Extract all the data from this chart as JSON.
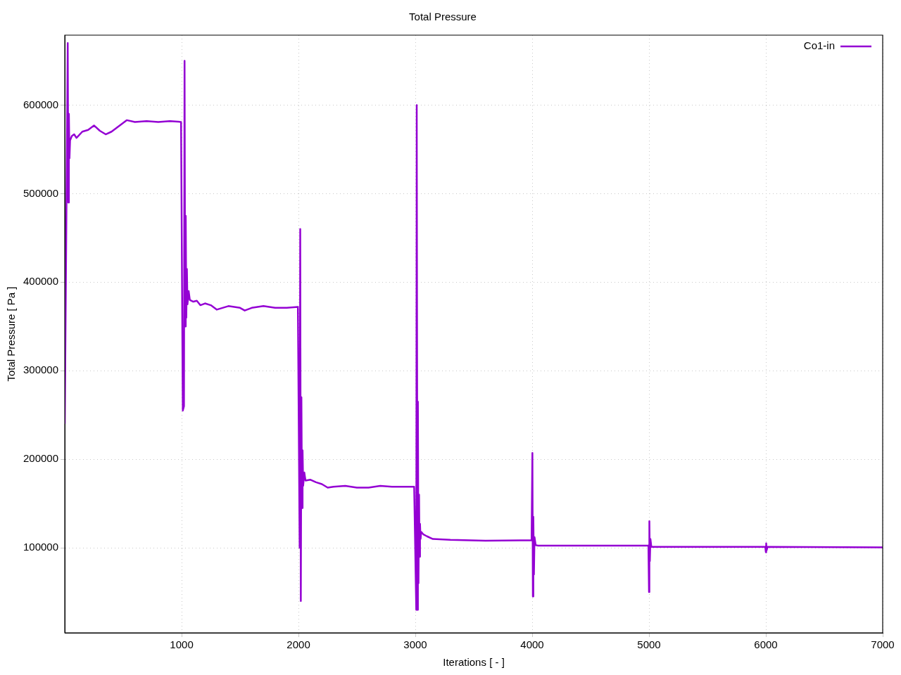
{
  "chart_data": {
    "type": "line",
    "title": "Total Pressure",
    "xlabel": "Iterations [ - ]",
    "ylabel": "Total Pressure [ Pa ]",
    "xlim": [
      0,
      7000
    ],
    "xticks": [
      1000,
      2000,
      3000,
      4000,
      5000,
      6000,
      7000
    ],
    "ylim": [
      4000,
      679000
    ],
    "yticks": [
      100000,
      200000,
      300000,
      400000,
      500000,
      600000
    ],
    "grid": true,
    "legend": "top right",
    "marker": "none",
    "line_style": "solid",
    "series": [
      {
        "name": "Co1-in",
        "color": "#9400d3",
        "x": [
          0,
          5,
          10,
          15,
          20,
          25,
          30,
          35,
          40,
          45,
          60,
          80,
          100,
          150,
          200,
          250,
          300,
          350,
          400,
          500,
          530,
          600,
          700,
          800,
          900,
          995,
          1000,
          1005,
          1010,
          1015,
          1020,
          1025,
          1030,
          1035,
          1040,
          1045,
          1050,
          1060,
          1070,
          1100,
          1130,
          1160,
          1200,
          1250,
          1300,
          1350,
          1400,
          1450,
          1500,
          1540,
          1600,
          1700,
          1800,
          1900,
          1995,
          2000,
          2005,
          2010,
          2015,
          2020,
          2025,
          2030,
          2035,
          2040,
          2050,
          2060,
          2100,
          2150,
          2200,
          2250,
          2300,
          2400,
          2500,
          2600,
          2700,
          2800,
          2900,
          2990,
          2995,
          3000,
          3003,
          3008,
          3012,
          3018,
          3022,
          3027,
          3032,
          3036,
          3040,
          3045,
          3050,
          3070,
          3100,
          3150,
          3300,
          3600,
          3900,
          3995,
          4000,
          4002,
          4006,
          4010,
          4015,
          4020,
          4030,
          4050,
          4500,
          4995,
          5000,
          5003,
          5007,
          5012,
          5020,
          5500,
          5995,
          6000,
          6003,
          6006,
          6015,
          7000
        ],
        "values": [
          240000,
          null,
          null,
          null,
          null,
          670000,
          490000,
          590000,
          540000,
          560000,
          565000,
          567000,
          563000,
          570000,
          572000,
          577000,
          571000,
          567000,
          570000,
          580000,
          583000,
          581000,
          582000,
          581000,
          582000,
          581000,
          null,
          null,
          255000,
          null,
          260000,
          650000,
          350000,
          475000,
          360000,
          415000,
          375000,
          390000,
          380000,
          378000,
          379000,
          374000,
          376000,
          374000,
          369000,
          371000,
          373000,
          372000,
          371000,
          368000,
          371000,
          373000,
          371000,
          371000,
          372000,
          null,
          null,
          100000,
          460000,
          40000,
          270000,
          145000,
          210000,
          170000,
          185000,
          176000,
          177000,
          174000,
          172000,
          168000,
          169000,
          170000,
          168000,
          168000,
          170000,
          169000,
          169000,
          169000,
          null,
          null,
          null,
          30000,
          600000,
          30000,
          265000,
          60000,
          160000,
          90000,
          127000,
          110000,
          118000,
          115000,
          113000,
          110000,
          109000,
          108000,
          108500,
          108500,
          null,
          207000,
          45000,
          135000,
          70000,
          112000,
          103000,
          102500,
          102500,
          102500,
          50000,
          130000,
          85000,
          110000,
          101000,
          101000,
          101000,
          95000,
          105000,
          97000,
          101000,
          100500
        ]
      }
    ]
  }
}
